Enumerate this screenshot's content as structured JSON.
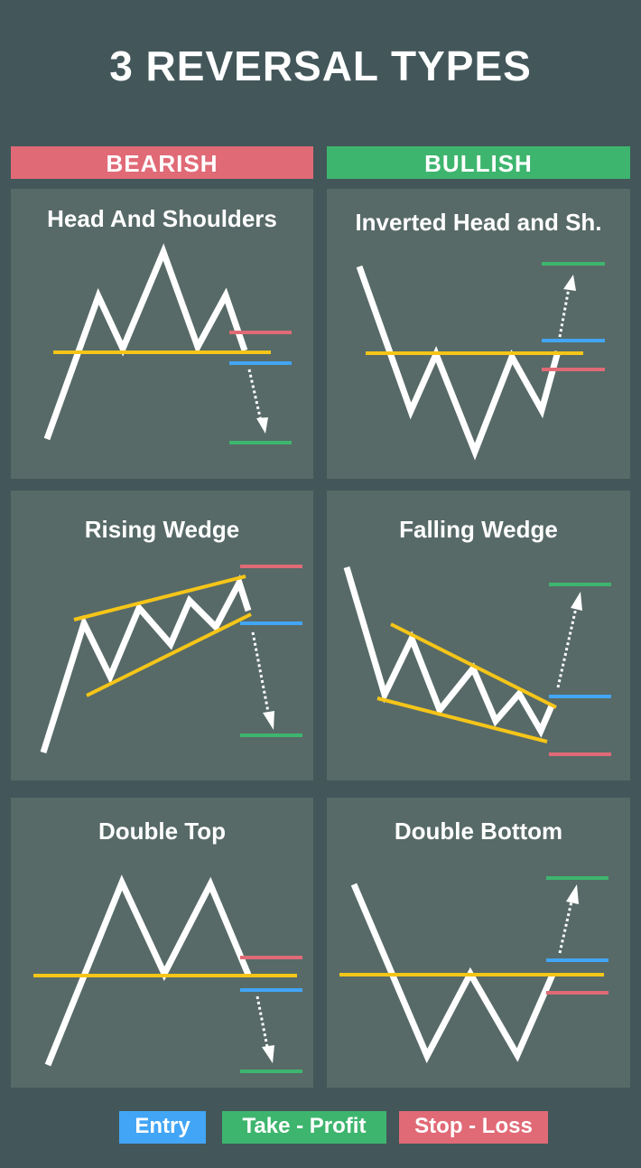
{
  "title": "3 REVERSAL TYPES",
  "headers": {
    "bearish": "BEARISH",
    "bullish": "BULLISH"
  },
  "panels": {
    "head_and_shoulders": "Head And Shoulders",
    "inverted_head_and_shoulders": "Inverted Head and Sh.",
    "rising_wedge": "Rising Wedge",
    "falling_wedge": "Falling Wedge",
    "double_top": "Double Top",
    "double_bottom": "Double Bottom"
  },
  "legend": {
    "entry": "Entry",
    "take_profit": "Take - Profit",
    "stop_loss": "Stop - Loss"
  },
  "colors": {
    "background": "#43575a",
    "panel": "#576a67",
    "bearish": "#e06a76",
    "bullish": "#3eb56e",
    "entry": "#42a5f5",
    "take_profit": "#3eb56e",
    "stop_loss": "#e06a76",
    "support_resistance": "#f5c518",
    "price_line": "#ffffff"
  }
}
